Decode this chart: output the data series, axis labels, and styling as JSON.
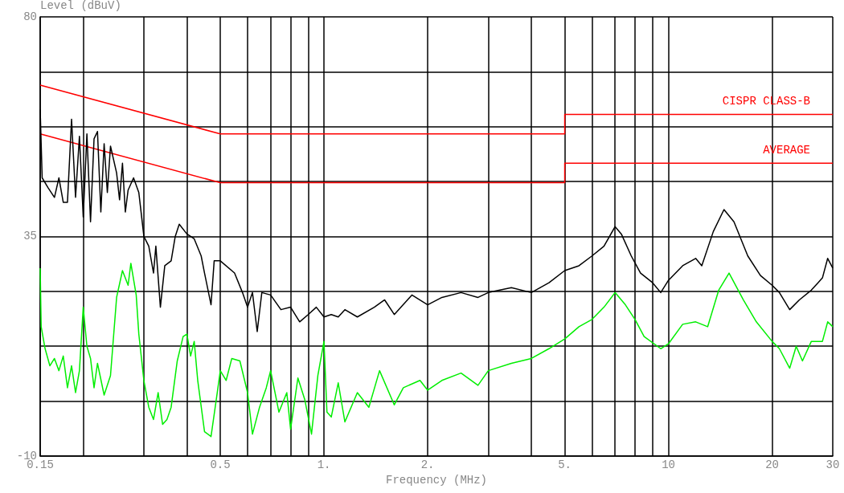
{
  "chart_data": {
    "type": "line",
    "xlabel": "Frequency (MHz)",
    "ylabel": "Level (dBuV)",
    "log": "x",
    "grid": true,
    "legend": false,
    "xlim": [
      0.15,
      30
    ],
    "ylim": [
      -10,
      80
    ],
    "xticks": [
      {
        "value": 0.15,
        "label": "0.15"
      },
      {
        "value": 0.2,
        "label": null
      },
      {
        "value": 0.3,
        "label": null
      },
      {
        "value": 0.4,
        "label": null
      },
      {
        "value": 0.5,
        "label": "0.5"
      },
      {
        "value": 0.6,
        "label": null
      },
      {
        "value": 0.7,
        "label": null
      },
      {
        "value": 0.8,
        "label": null
      },
      {
        "value": 0.9,
        "label": null
      },
      {
        "value": 1,
        "label": "1."
      },
      {
        "value": 2,
        "label": "2."
      },
      {
        "value": 3,
        "label": null
      },
      {
        "value": 4,
        "label": null
      },
      {
        "value": 5,
        "label": "5."
      },
      {
        "value": 6,
        "label": null
      },
      {
        "value": 7,
        "label": null
      },
      {
        "value": 8,
        "label": null
      },
      {
        "value": 9,
        "label": null
      },
      {
        "value": 10,
        "label": "10"
      },
      {
        "value": 20,
        "label": "20"
      },
      {
        "value": 30,
        "label": "30"
      }
    ],
    "yticks": [
      -10,
      {
        "value": 1.25,
        "label": null
      },
      {
        "value": 12.5,
        "label": null
      },
      {
        "value": 23.75,
        "label": null
      },
      35,
      {
        "value": 46.25,
        "label": null
      },
      {
        "value": 57.5,
        "label": null
      },
      {
        "value": 68.75,
        "label": null
      },
      80
    ],
    "series": [
      {
        "name": "CISPR CLASS-B",
        "color": "#ff0000",
        "x": [
          0.15,
          0.5,
          5,
          5,
          30
        ],
        "values": [
          66,
          56,
          56,
          60,
          60
        ]
      },
      {
        "name": "AVERAGE",
        "color": "#ff0000",
        "x": [
          0.15,
          0.5,
          5,
          5,
          30
        ],
        "values": [
          56,
          46,
          46,
          50,
          50
        ]
      },
      {
        "color": "#000000",
        "x": [
          0.15,
          0.152,
          0.158,
          0.165,
          0.17,
          0.175,
          0.18,
          0.185,
          0.19,
          0.195,
          0.2,
          0.205,
          0.21,
          0.215,
          0.22,
          0.225,
          0.23,
          0.235,
          0.24,
          0.25,
          0.255,
          0.26,
          0.265,
          0.27,
          0.28,
          0.29,
          0.295,
          0.3,
          0.31,
          0.32,
          0.325,
          0.335,
          0.345,
          0.36,
          0.37,
          0.38,
          0.4,
          0.42,
          0.44,
          0.45,
          0.47,
          0.48,
          0.5,
          0.55,
          0.58,
          0.6,
          0.62,
          0.64,
          0.66,
          0.7,
          0.75,
          0.8,
          0.85,
          0.9,
          0.95,
          1,
          1.05,
          1.1,
          1.15,
          1.25,
          1.4,
          1.5,
          1.6,
          1.8,
          2,
          2.2,
          2.5,
          2.8,
          3,
          3.5,
          4,
          4.5,
          5,
          5.5,
          6,
          6.5,
          7,
          7.3,
          7.8,
          8.3,
          9,
          9.5,
          10,
          11,
          12,
          12.5,
          13.5,
          14.5,
          15.5,
          17,
          18.5,
          20,
          21,
          22.5,
          24,
          26,
          28,
          29,
          30
        ],
        "values": [
          61,
          47,
          45,
          43,
          47,
          42,
          42,
          59,
          43,
          55.5,
          39,
          56,
          38,
          55,
          56.5,
          40,
          54,
          44,
          53.5,
          48,
          42.5,
          50,
          40,
          44.5,
          47,
          44,
          39.5,
          35,
          33,
          27.5,
          33,
          20.5,
          29,
          30,
          35,
          37.5,
          35.5,
          34.5,
          31,
          27.5,
          21,
          30,
          30,
          27.5,
          23.5,
          20.5,
          23.5,
          15.5,
          23.5,
          23,
          20,
          20.5,
          17.5,
          19,
          20.5,
          18.5,
          19,
          18.5,
          20,
          18.5,
          20.5,
          22,
          19,
          23,
          21,
          22.5,
          23.5,
          22.5,
          23.5,
          24.5,
          23.5,
          25.5,
          28,
          29,
          31,
          33,
          37,
          35.5,
          31,
          27.5,
          25.5,
          23.5,
          26,
          29,
          30.5,
          29,
          36,
          40.5,
          38,
          31,
          27,
          25,
          23.5,
          20,
          22,
          24,
          26.5,
          30.5,
          28.5
        ]
      },
      {
        "color": "#00ee00",
        "x": [
          0.15,
          0.151,
          0.155,
          0.16,
          0.165,
          0.17,
          0.175,
          0.18,
          0.185,
          0.19,
          0.195,
          0.2,
          0.205,
          0.21,
          0.215,
          0.22,
          0.23,
          0.24,
          0.25,
          0.26,
          0.27,
          0.275,
          0.285,
          0.29,
          0.3,
          0.31,
          0.32,
          0.33,
          0.34,
          0.35,
          0.36,
          0.375,
          0.39,
          0.4,
          0.41,
          0.42,
          0.43,
          0.45,
          0.47,
          0.49,
          0.5,
          0.52,
          0.54,
          0.57,
          0.6,
          0.62,
          0.65,
          0.68,
          0.7,
          0.74,
          0.78,
          0.8,
          0.84,
          0.88,
          0.92,
          0.96,
          1,
          1.02,
          1.05,
          1.1,
          1.15,
          1.25,
          1.35,
          1.45,
          1.6,
          1.7,
          1.9,
          2,
          2.2,
          2.5,
          2.8,
          3,
          3.5,
          4,
          4.5,
          5,
          5.5,
          6,
          6.5,
          7,
          7.5,
          8,
          8.5,
          9.5,
          10,
          11,
          12,
          13,
          14,
          15,
          16.5,
          18,
          20,
          21,
          22.5,
          23.5,
          24.5,
          26,
          28,
          29,
          30
        ],
        "values": [
          28.5,
          16.5,
          12,
          8.5,
          10,
          7.5,
          10.5,
          4,
          8.5,
          3,
          7.5,
          20.5,
          12.5,
          10,
          4,
          9,
          2.5,
          6.5,
          22.5,
          28,
          25,
          29.5,
          23,
          15,
          5.5,
          0,
          -2.5,
          3,
          -3.5,
          -2.5,
          0,
          9.5,
          14.5,
          15,
          10.5,
          13.5,
          5.5,
          -5,
          -6,
          3,
          7.5,
          5.5,
          10,
          9.5,
          3,
          -5.5,
          0,
          4,
          7.5,
          -1,
          3,
          -4.5,
          6,
          1.5,
          -5.5,
          6.5,
          13.5,
          -1,
          -2,
          5,
          -3,
          3,
          0,
          7.5,
          0.5,
          4,
          5.5,
          3.5,
          5.5,
          7,
          4.5,
          7.5,
          9,
          10,
          12,
          14,
          16.5,
          18,
          20.5,
          23.5,
          21,
          18,
          14.5,
          12,
          13,
          17,
          17.5,
          16.5,
          24,
          27.5,
          22,
          17.5,
          13.5,
          12,
          8,
          12.5,
          9.5,
          13.5,
          13.5,
          17.5,
          16.5
        ]
      }
    ]
  }
}
